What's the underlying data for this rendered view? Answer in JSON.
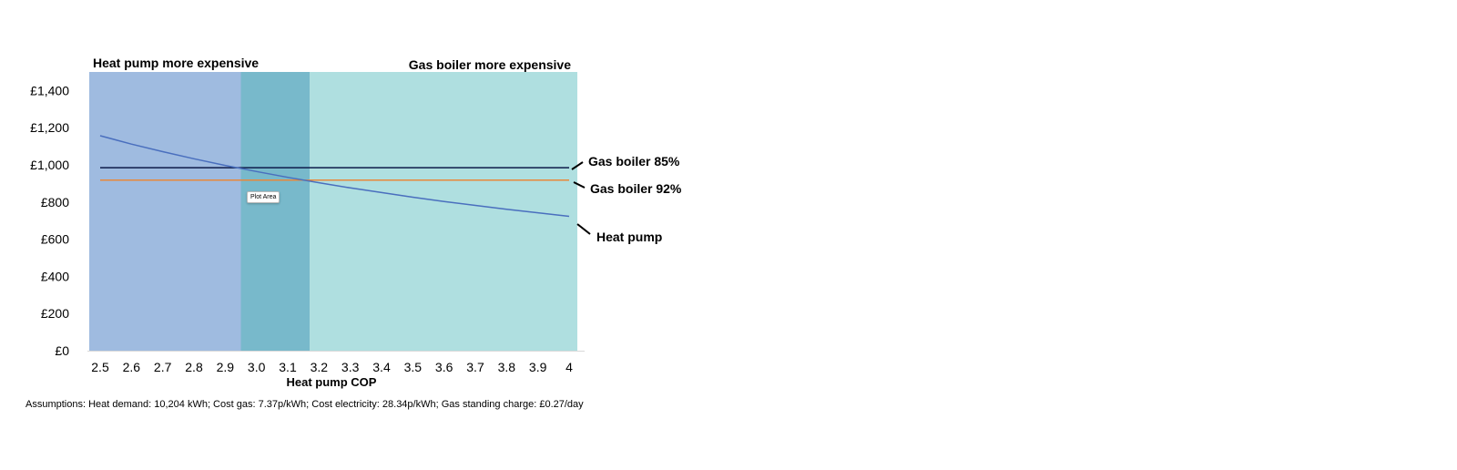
{
  "chart_data": {
    "type": "line",
    "xlabel": "Heat pump COP",
    "ylabel": "",
    "xlim": [
      2.5,
      4.0
    ],
    "ylim": [
      0,
      1500
    ],
    "x_ticks": [
      "2.5",
      "2.6",
      "2.7",
      "2.8",
      "2.9",
      "3.0",
      "3.1",
      "3.2",
      "3.3",
      "3.4",
      "3.5",
      "3.6",
      "3.7",
      "3.8",
      "3.9",
      "4"
    ],
    "y_ticks": [
      "£0",
      "£200",
      "£400",
      "£600",
      "£800",
      "£1,000",
      "£1,200",
      "£1,400"
    ],
    "y_tick_values": [
      0,
      200,
      400,
      600,
      800,
      1000,
      1200,
      1400
    ],
    "regions": [
      {
        "label": "Heat pump more expensive",
        "x_end": 2.95,
        "color": "#9fbbe0"
      },
      {
        "label": "",
        "x_start": 2.95,
        "x_end": 3.17,
        "color": "#78b9cb"
      },
      {
        "label": "Gas boiler more expensive",
        "x_start": 3.17,
        "color": "#afdfe0"
      }
    ],
    "series": [
      {
        "name": "Gas boiler 85%",
        "color": "#0d1b4a",
        "x": [
          2.5,
          4.0
        ],
        "values": [
          985,
          985
        ]
      },
      {
        "name": "Gas boiler 92%",
        "color": "#e8883a",
        "x": [
          2.5,
          4.0
        ],
        "values": [
          918,
          918
        ]
      },
      {
        "name": "Heat pump",
        "color": "#4a6fbe",
        "x": [
          2.5,
          2.6,
          2.7,
          2.8,
          2.9,
          3.0,
          3.1,
          3.2,
          3.3,
          3.4,
          3.5,
          3.6,
          3.7,
          3.8,
          3.9,
          4.0
        ],
        "values": [
          1157,
          1112,
          1071,
          1033,
          997,
          964,
          933,
          904,
          876,
          851,
          826,
          803,
          782,
          761,
          742,
          723
        ]
      }
    ],
    "grid": false,
    "legend": "direct labels at right"
  },
  "ui": {
    "plot_area_tag": "Plot Area",
    "assumptions": "Assumptions: Heat demand: 10,204 kWh; Cost gas: 7.37p/kWh; Cost electricity: 28.34p/kWh; Gas standing charge: £0.27/day"
  }
}
